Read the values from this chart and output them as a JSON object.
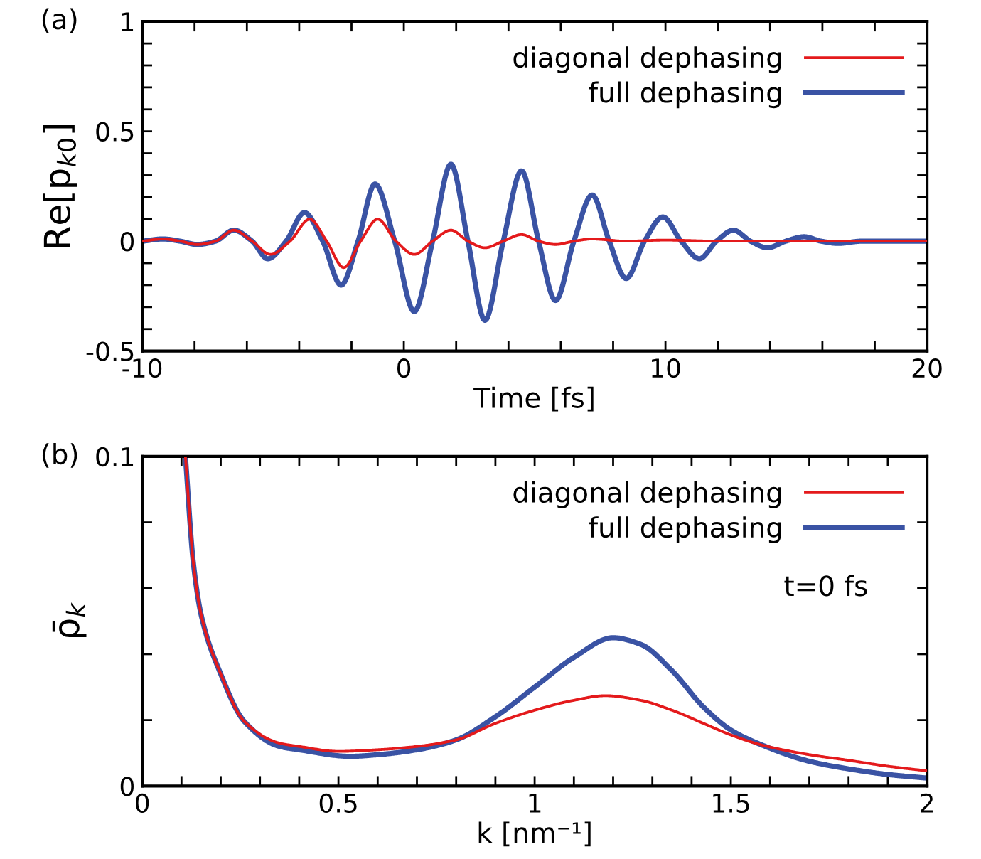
{
  "chart_data": [
    {
      "type": "line",
      "annotations": [
        "(a)"
      ],
      "xlabel": "Time [fs]",
      "ylabel": "Re[p$_{k0}$]",
      "xlim": [
        -10,
        20
      ],
      "ylim": [
        -0.5,
        1
      ],
      "xticks": [
        -10,
        {
          "value": -8,
          "label": null
        },
        {
          "value": -6,
          "label": null
        },
        {
          "value": -4,
          "label": null
        },
        {
          "value": -2,
          "label": null
        },
        0,
        {
          "value": 2,
          "label": null
        },
        {
          "value": 4,
          "label": null
        },
        {
          "value": 6,
          "label": null
        },
        {
          "value": 8,
          "label": null
        },
        10,
        {
          "value": 12,
          "label": null
        },
        {
          "value": 14,
          "label": null
        },
        {
          "value": 16,
          "label": null
        },
        {
          "value": 18,
          "label": null
        },
        20
      ],
      "yticks": [
        -0.5,
        {
          "value": -0.4,
          "label": null
        },
        {
          "value": -0.3,
          "label": null
        },
        {
          "value": -0.2,
          "label": null
        },
        {
          "value": -0.1,
          "label": null
        },
        0,
        {
          "value": 0.1,
          "label": null
        },
        {
          "value": 0.2,
          "label": null
        },
        {
          "value": 0.3,
          "label": null
        },
        {
          "value": 0.4,
          "label": null
        },
        0.5,
        {
          "value": 0.6,
          "label": null
        },
        {
          "value": 0.7,
          "label": null
        },
        {
          "value": 0.8,
          "label": null
        },
        {
          "value": 0.9,
          "label": null
        },
        1
      ],
      "grid": false,
      "legend": "top right",
      "line_style": "solid",
      "marker": "none",
      "series": [
        {
          "name": "diagonal dephasing",
          "color": "#e41a1c",
          "x": [
            -10,
            -9.2,
            -8.55,
            -7.9,
            -7.2,
            -6.5,
            -5.8,
            -5.1,
            -4.35,
            -3.6,
            -2.95,
            -2.3,
            -1.65,
            -1.0,
            -0.3,
            0.4,
            1.1,
            1.8,
            2.45,
            3.1,
            3.8,
            4.5,
            5.15,
            5.8,
            6.5,
            7.2,
            8.5,
            10,
            12,
            15,
            20
          ],
          "values": [
            0.0,
            0.01,
            0.0,
            -0.015,
            0.0,
            0.05,
            0.0,
            -0.06,
            0.0,
            0.1,
            0.0,
            -0.12,
            0.0,
            0.1,
            0.0,
            -0.06,
            0.0,
            0.05,
            0.0,
            -0.03,
            0.0,
            0.03,
            0.0,
            -0.015,
            0.0,
            0.01,
            0.0,
            0.005,
            0.0,
            0.0,
            0.0
          ]
        },
        {
          "name": "full dephasing",
          "color": "#3a53a4",
          "x": [
            -10,
            -9.2,
            -8.55,
            -7.9,
            -7.2,
            -6.5,
            -5.8,
            -5.2,
            -4.5,
            -3.8,
            -3.1,
            -2.4,
            -1.75,
            -1.1,
            -0.35,
            0.4,
            1.1,
            1.8,
            2.45,
            3.1,
            3.8,
            4.5,
            5.15,
            5.8,
            6.5,
            7.2,
            7.85,
            8.5,
            9.2,
            9.9,
            10.6,
            11.3,
            11.95,
            12.6,
            13.25,
            13.9,
            14.6,
            15.3,
            15.95,
            16.6,
            17.5,
            20
          ],
          "values": [
            0.0,
            0.01,
            0.0,
            -0.015,
            0.0,
            0.05,
            0.0,
            -0.08,
            0.0,
            0.13,
            0.0,
            -0.2,
            0.0,
            0.26,
            0.0,
            -0.32,
            0.0,
            0.35,
            0.0,
            -0.36,
            0.0,
            0.32,
            0.0,
            -0.27,
            0.0,
            0.21,
            0.0,
            -0.17,
            0.0,
            0.11,
            0.0,
            -0.08,
            0.0,
            0.05,
            0.0,
            -0.03,
            0.0,
            0.02,
            0.0,
            -0.01,
            0.0,
            0.0
          ]
        }
      ]
    },
    {
      "type": "line",
      "annotations": [
        "(b)",
        "t=0 fs"
      ],
      "xlabel": "k [nm⁻¹]",
      "ylabel": "ρ̄$_{k}$",
      "xlim": [
        0,
        2
      ],
      "ylim": [
        0,
        0.1
      ],
      "xticks": [
        0,
        {
          "value": 0.1,
          "label": null
        },
        {
          "value": 0.2,
          "label": null
        },
        {
          "value": 0.3,
          "label": null
        },
        {
          "value": 0.4,
          "label": null
        },
        0.5,
        {
          "value": 0.6,
          "label": null
        },
        {
          "value": 0.7,
          "label": null
        },
        {
          "value": 0.8,
          "label": null
        },
        {
          "value": 0.9,
          "label": null
        },
        1,
        {
          "value": 1.1,
          "label": null
        },
        {
          "value": 1.2,
          "label": null
        },
        {
          "value": 1.3,
          "label": null
        },
        {
          "value": 1.4,
          "label": null
        },
        1.5,
        {
          "value": 1.6,
          "label": null
        },
        {
          "value": 1.7,
          "label": null
        },
        {
          "value": 1.8,
          "label": null
        },
        {
          "value": 1.9,
          "label": null
        },
        2
      ],
      "yticks": [
        0,
        {
          "value": 0.02,
          "label": null
        },
        {
          "value": 0.04,
          "label": null
        },
        {
          "value": 0.06,
          "label": null
        },
        {
          "value": 0.08,
          "label": null
        },
        0.1
      ],
      "grid": false,
      "legend": "top right",
      "line_style": "solid",
      "marker": "none",
      "series": [
        {
          "name": "diagonal dephasing",
          "color": "#e41a1c",
          "x": [
            0.11,
            0.13,
            0.15,
            0.2,
            0.26,
            0.35,
            0.4,
            0.5,
            0.6,
            0.7,
            0.8,
            0.9,
            1.0,
            1.1,
            1.18,
            1.27,
            1.35,
            1.43,
            1.5,
            1.58,
            1.7,
            1.8,
            1.9,
            2.0
          ],
          "values": [
            0.1,
            0.068,
            0.052,
            0.034,
            0.0196,
            0.013,
            0.012,
            0.0105,
            0.011,
            0.012,
            0.014,
            0.019,
            0.023,
            0.026,
            0.0274,
            0.026,
            0.023,
            0.019,
            0.0155,
            0.0124,
            0.0095,
            0.0078,
            0.006,
            0.0046
          ]
        },
        {
          "name": "full dephasing",
          "color": "#3a53a4",
          "x": [
            0.11,
            0.13,
            0.15,
            0.2,
            0.26,
            0.35,
            0.4,
            0.53,
            0.6,
            0.7,
            0.8,
            0.9,
            1.0,
            1.1,
            1.2,
            1.27,
            1.35,
            1.43,
            1.5,
            1.58,
            1.7,
            1.8,
            1.9,
            2.0
          ],
          "values": [
            0.1,
            0.068,
            0.052,
            0.034,
            0.0196,
            0.012,
            0.011,
            0.009,
            0.0095,
            0.011,
            0.014,
            0.021,
            0.03,
            0.039,
            0.045,
            0.043,
            0.035,
            0.024,
            0.017,
            0.0124,
            0.0075,
            0.0052,
            0.0035,
            0.0024
          ]
        }
      ]
    }
  ]
}
